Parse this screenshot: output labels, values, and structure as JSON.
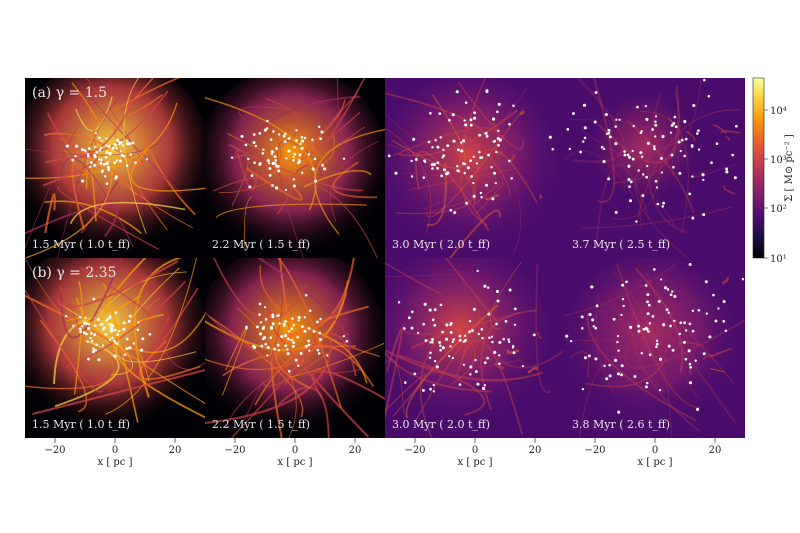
{
  "rows": [
    {
      "label": "(a) γ = 1.5",
      "panels": [
        {
          "time_label": "1.5 Myr ( 1.0 t_ff)",
          "seed": 11,
          "brightness": 1.0
        },
        {
          "time_label": "2.2 Myr ( 1.5 t_ff)",
          "seed": 23,
          "brightness": 0.8
        },
        {
          "time_label": "3.0 Myr ( 2.0 t_ff)",
          "seed": 37,
          "brightness": 0.45
        },
        {
          "time_label": "3.7 Myr ( 2.5 t_ff)",
          "seed": 51,
          "brightness": 0.2
        }
      ]
    },
    {
      "label": "(b) γ = 2.35",
      "panels": [
        {
          "time_label": "1.5 Myr ( 1.0 t_ff)",
          "seed": 61,
          "brightness": 1.0
        },
        {
          "time_label": "2.2 Myr ( 1.5 t_ff)",
          "seed": 73,
          "brightness": 0.85
        },
        {
          "time_label": "3.0 Myr ( 2.0 t_ff)",
          "seed": 89,
          "brightness": 0.45
        },
        {
          "time_label": "3.8 Myr ( 2.6 t_ff)",
          "seed": 97,
          "brightness": 0.25
        }
      ]
    }
  ],
  "x_axis": {
    "label": "x [ pc ]",
    "ticks": [
      -20,
      0,
      20
    ]
  },
  "colorbar": {
    "label": "Σ [ M⊙ pc⁻² ]",
    "ticks": [
      "10¹",
      "10²",
      "10³",
      "10⁴"
    ],
    "colors": [
      "#000004",
      "#1b0c41",
      "#4a0c6b",
      "#781c6d",
      "#a52c60",
      "#cf4446",
      "#ed6925",
      "#fb9b06",
      "#f7d13d",
      "#fcffa4"
    ]
  }
}
